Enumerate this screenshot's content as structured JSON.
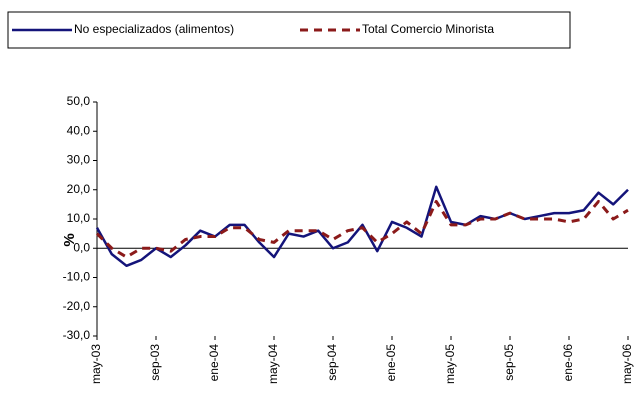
{
  "chart_data": {
    "type": "line",
    "ylabel": "%",
    "categories": [
      "may-03",
      null,
      null,
      null,
      "sep-03",
      null,
      null,
      null,
      "ene-04",
      null,
      null,
      null,
      "may-04",
      null,
      null,
      null,
      "sep-04",
      null,
      null,
      null,
      "ene-05",
      null,
      null,
      null,
      "may-05",
      null,
      null,
      null,
      "sep-05",
      null,
      null,
      null,
      "ene-06",
      null,
      null,
      null,
      "may-06"
    ],
    "series": [
      {
        "name": "No especializados (alimentos)",
        "color": "#14147a",
        "dash": false,
        "values": [
          7,
          -2,
          -6,
          -4,
          0,
          -3,
          1,
          6,
          4,
          8,
          8,
          2,
          -3,
          5,
          4,
          6,
          0,
          2,
          8,
          -1,
          9,
          7,
          4,
          21,
          9,
          8,
          11,
          10,
          12,
          10,
          11,
          12,
          12,
          13,
          19,
          15,
          20
        ]
      },
      {
        "name": "Total Comercio Minorista",
        "color": "#8b1a1a",
        "dash": true,
        "values": [
          5,
          0,
          -3,
          0,
          0,
          -1,
          3,
          4,
          4,
          7,
          7,
          3,
          2,
          6,
          6,
          6,
          3,
          6,
          7,
          2,
          5,
          9,
          5,
          16,
          8,
          8,
          10,
          10,
          12,
          10,
          10,
          10,
          9,
          10,
          16,
          10,
          13
        ]
      }
    ],
    "ylim": [
      -30,
      50
    ],
    "yticks": [
      {
        "value": -30,
        "label": "-30,0"
      },
      {
        "value": -20,
        "label": "-20,0"
      },
      {
        "value": -10,
        "label": "-10,0"
      },
      {
        "value": 0,
        "label": "0,0"
      },
      {
        "value": 10,
        "label": "10,0"
      },
      {
        "value": 20,
        "label": "20,0"
      },
      {
        "value": 30,
        "label": "30,0"
      },
      {
        "value": 40,
        "label": "40,0"
      },
      {
        "value": 50,
        "label": "50,0"
      }
    ],
    "legend": "top"
  }
}
